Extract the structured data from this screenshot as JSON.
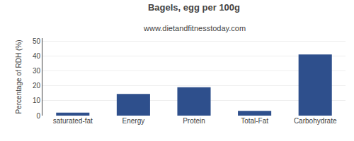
{
  "chart_data": {
    "type": "bar",
    "title": "Bagels, egg per 100g",
    "subtitle": "www.dietandfitnesstoday.com",
    "categories": [
      "saturated-fat",
      "Energy",
      "Protein",
      "Total-Fat",
      "Carbohydrate"
    ],
    "values": [
      2.0,
      14.5,
      19.0,
      3.2,
      41.0
    ],
    "color": "#2e4f8c",
    "ylabel": "Percentage of RDH (%)",
    "ylim": [
      0,
      52
    ],
    "yticks": [
      0,
      10,
      20,
      30,
      40,
      50
    ],
    "grid": true
  }
}
